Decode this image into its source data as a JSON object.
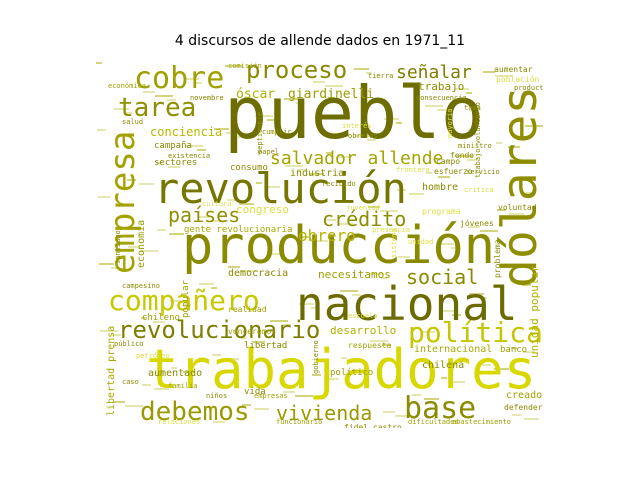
{
  "figure": {
    "title": "4 discursos de allende dados en 1971_11"
  },
  "words": [
    {
      "text": "pueblo",
      "color": "#6e6e00",
      "weight": 100
    },
    {
      "text": "producción",
      "color": "#8a8a00",
      "weight": 82
    },
    {
      "text": "trabajadores",
      "color": "#d8d800",
      "weight": 78
    },
    {
      "text": "revolución",
      "color": "#757500",
      "weight": 66
    },
    {
      "text": "nacional",
      "color": "#6b6b00",
      "weight": 64
    },
    {
      "text": "dólares",
      "color": "#8e8e00",
      "weight": 58
    },
    {
      "text": "empresa",
      "color": "#a3a300",
      "weight": 50
    },
    {
      "text": "compañero",
      "color": "#c8c800",
      "weight": 42
    },
    {
      "text": "cobre",
      "color": "#a0a000",
      "weight": 40
    },
    {
      "text": "base",
      "color": "#8c8c00",
      "weight": 40
    },
    {
      "text": "política",
      "color": "#c6c600",
      "weight": 36
    },
    {
      "text": "debemos",
      "color": "#9a9a00",
      "weight": 34
    },
    {
      "text": "revolucionario",
      "color": "#7d7d00",
      "weight": 32
    },
    {
      "text": "tarea",
      "color": "#8f8f00",
      "weight": 30
    },
    {
      "text": "proceso",
      "color": "#8a8a00",
      "weight": 30
    },
    {
      "text": "salvador allende",
      "color": "#a4a400",
      "weight": 24
    },
    {
      "text": "vivienda",
      "color": "#9a9a00",
      "weight": 22
    },
    {
      "text": "crédito",
      "color": "#8d8d00",
      "weight": 22
    },
    {
      "text": "países",
      "color": "#909000",
      "weight": 22
    },
    {
      "text": "social",
      "color": "#8a8a00",
      "weight": 20
    },
    {
      "text": "señalar",
      "color": "#808000",
      "weight": 18
    },
    {
      "text": "obrero",
      "color": "#b4b400",
      "weight": 16
    },
    {
      "text": "óscar",
      "color": "#b0b000",
      "weight": 14
    },
    {
      "text": "giardinelli",
      "color": "#9c9c00",
      "weight": 14
    },
    {
      "text": "conciencia",
      "color": "#b8b800",
      "weight": 12
    },
    {
      "text": "unidad popular",
      "color": "#b2b200",
      "weight": 12
    },
    {
      "text": "congreso",
      "color": "#dede40",
      "weight": 11
    },
    {
      "text": "trabajo",
      "color": "#8e8e00",
      "weight": 11
    },
    {
      "text": "necesitamos",
      "color": "#9e9e00",
      "weight": 10
    },
    {
      "text": "desarrollo",
      "color": "#b0b000",
      "weight": 10
    },
    {
      "text": "internacional",
      "color": "#a8a800",
      "weight": 10
    },
    {
      "text": "economía",
      "color": "#9a9a00",
      "weight": 10
    },
    {
      "text": "libertad prensa",
      "color": "#a8a800",
      "weight": 10
    },
    {
      "text": "democracia",
      "color": "#8a8a00",
      "weight": 9
    },
    {
      "text": "industria",
      "color": "#8a8a00",
      "weight": 9
    },
    {
      "text": "aumentado",
      "color": "#8a8a00",
      "weight": 9
    },
    {
      "text": "gente revolucionaria",
      "color": "#a8a800",
      "weight": 9
    },
    {
      "text": "chilena",
      "color": "#8a8a00",
      "weight": 9
    },
    {
      "text": "hombre",
      "color": "#8a8a00",
      "weight": 9
    },
    {
      "text": "popular",
      "color": "#a0a000",
      "weight": 8
    },
    {
      "text": "sectores",
      "color": "#8a8a00",
      "weight": 8
    },
    {
      "text": "consumo",
      "color": "#8a8a00",
      "weight": 8
    },
    {
      "text": "campaña",
      "color": "#8a8a00",
      "weight": 8
    },
    {
      "text": "político",
      "color": "#a0a000",
      "weight": 8
    },
    {
      "text": "fidel castro",
      "color": "#8a8a00",
      "weight": 8
    },
    {
      "text": "aumentar",
      "color": "#8a8a00",
      "weight": 8
    },
    {
      "text": "creado",
      "color": "#a0a000",
      "weight": 8
    },
    {
      "text": "banco",
      "color": "#a0a000",
      "weight": 8
    },
    {
      "text": "respuesta",
      "color": "#a0a000",
      "weight": 7
    },
    {
      "text": "libertad",
      "color": "#8a8a00",
      "weight": 7
    },
    {
      "text": "chileno",
      "color": "#a0a000",
      "weight": 7
    },
    {
      "text": "realidad",
      "color": "#a0a000",
      "weight": 7
    },
    {
      "text": "venceremos",
      "color": "#a0a000",
      "weight": 7
    },
    {
      "text": "vida",
      "color": "#8a8a00",
      "weight": 7
    },
    {
      "text": "esfuerzo",
      "color": "#8a8a00",
      "weight": 7
    },
    {
      "text": "fondo",
      "color": "#8a8a00",
      "weight": 7
    },
    {
      "text": "campo",
      "color": "#8a8a00",
      "weight": 7
    },
    {
      "text": "programa",
      "color": "#dede40",
      "weight": 7
    },
    {
      "text": "problema",
      "color": "#8a8a00",
      "weight": 7
    },
    {
      "text": "jóvenes",
      "color": "#8a8a00",
      "weight": 6
    },
    {
      "text": "voluntad",
      "color": "#8a8a00",
      "weight": 6
    },
    {
      "text": "defender",
      "color": "#8a8a00",
      "weight": 6
    },
    {
      "text": "población",
      "color": "#dede40",
      "weight": 6
    },
    {
      "text": "producto",
      "color": "#8a8a00",
      "weight": 6
    },
    {
      "text": "consecuencia",
      "color": "#8a8a00",
      "weight": 6
    },
    {
      "text": "ministro",
      "color": "#8a8a00",
      "weight": 6
    },
    {
      "text": "servicio",
      "color": "#8a8a00",
      "weight": 6
    },
    {
      "text": "novembre",
      "color": "#8a8a00",
      "weight": 6
    },
    {
      "text": "familia",
      "color": "#a0a000",
      "weight": 6
    },
    {
      "text": "mayoría",
      "color": "#dede40",
      "weight": 6
    },
    {
      "text": "campesino",
      "color": "#8a8a00",
      "weight": 6
    },
    {
      "text": "santiago",
      "color": "#8a8a00",
      "weight": 6
    },
    {
      "text": "existencia",
      "color": "#8a8a00",
      "weight": 6
    },
    {
      "text": "tierra",
      "color": "#8a8a00",
      "weight": 5
    },
    {
      "text": "papel",
      "color": "#8a8a00",
      "weight": 5
    },
    {
      "text": "toma",
      "color": "#8a8a00",
      "weight": 5
    },
    {
      "text": "salud",
      "color": "#8a8a00",
      "weight": 5
    },
    {
      "text": "caso",
      "color": "#8a8a00",
      "weight": 5
    },
    {
      "text": "niños",
      "color": "#8a8a00",
      "weight": 5
    },
    {
      "text": "público",
      "color": "#8a8a00",
      "weight": 5
    },
    {
      "text": "comisión",
      "color": "#a0a000",
      "weight": 5
    },
    {
      "text": "dificultades",
      "color": "#a0a000",
      "weight": 5
    },
    {
      "text": "empresas",
      "color": "#a0a000",
      "weight": 5
    },
    {
      "text": "funcionario",
      "color": "#a0a000",
      "weight": 5
    },
    {
      "text": "sistema",
      "color": "#dede40",
      "weight": 5
    },
    {
      "text": "presencia",
      "color": "#dede40",
      "weight": 5
    },
    {
      "text": "petróleo",
      "color": "#dede40",
      "weight": 5
    },
    {
      "text": "cultura",
      "color": "#dede40",
      "weight": 5
    },
    {
      "text": "juventud",
      "color": "#dede40",
      "weight": 5
    },
    {
      "text": "cumplir",
      "color": "#8a8a00",
      "weight": 5
    },
    {
      "text": "septiembre",
      "color": "#8a8a00",
      "weight": 5
    },
    {
      "text": "gobierno",
      "color": "#8a8a00",
      "weight": 5
    },
    {
      "text": "obreros",
      "color": "#8a8a00",
      "weight": 5
    },
    {
      "text": "interés",
      "color": "#dede40",
      "weight": 5
    },
    {
      "text": "relaciones",
      "color": "#dede40",
      "weight": 4
    },
    {
      "text": "económica",
      "color": "#a0a000",
      "weight": 4
    },
    {
      "text": "escuela",
      "color": "#dede40",
      "weight": 4
    },
    {
      "text": "abastecimiento",
      "color": "#a0a000",
      "weight": 4
    },
    {
      "text": "frontera",
      "color": "#dede40",
      "weight": 4
    },
    {
      "text": "crítica",
      "color": "#dede40",
      "weight": 4
    },
    {
      "text": "trabajo voluntario",
      "color": "#8a8a00",
      "weight": 4
    },
    {
      "text": "unidad",
      "color": "#dede40",
      "weight": 4
    },
    {
      "text": "recibido",
      "color": "#8a8a00",
      "weight": 3
    }
  ]
}
